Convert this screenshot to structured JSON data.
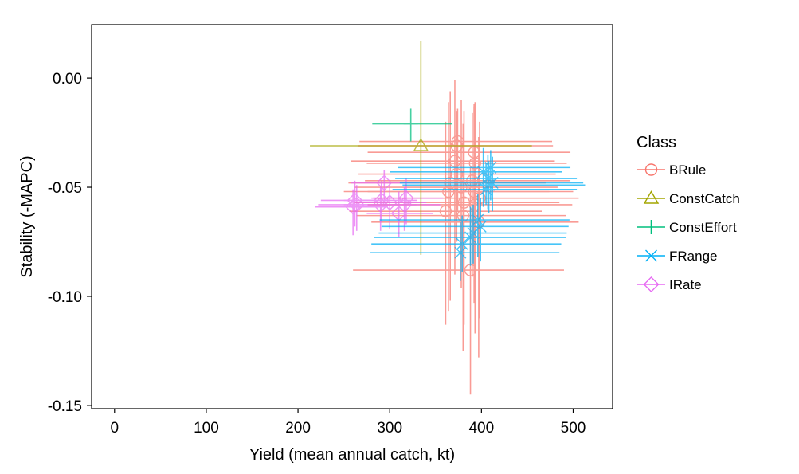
{
  "chart_data": {
    "type": "scatter",
    "title": "",
    "xlabel": "Yield (mean annual catch, kt)",
    "ylabel": "Stability (-MAPC)",
    "xlim": [
      -25,
      543
    ],
    "ylim": [
      -0.1515,
      0.0245
    ],
    "x_ticks": [
      0,
      100,
      200,
      300,
      400,
      500
    ],
    "y_ticks": [
      0.0,
      -0.05,
      -0.1,
      -0.15
    ],
    "x_tick_labels": [
      "0",
      "100",
      "200",
      "300",
      "400",
      "500"
    ],
    "y_tick_labels": [
      "0.00",
      "-0.05",
      "-0.10",
      "-0.15"
    ],
    "grid": false,
    "legend": {
      "title": "Class",
      "placement": "right"
    },
    "series": [
      {
        "name": "BRule",
        "color": "#F8766D",
        "marker": "circle",
        "points": [
          {
            "x": 374,
            "y": -0.029,
            "xmin": 267,
            "xmax": 477,
            "ymin": -0.061,
            "ymax": -0.014
          },
          {
            "x": 373,
            "y": -0.031,
            "xmin": 265,
            "xmax": 478,
            "ymin": -0.063,
            "ymax": -0.015
          },
          {
            "x": 392,
            "y": -0.034,
            "xmin": 276,
            "xmax": 497,
            "ymin": -0.077,
            "ymax": -0.012
          },
          {
            "x": 371,
            "y": -0.038,
            "xmin": 258,
            "xmax": 480,
            "ymin": -0.09,
            "ymax": -0.001
          },
          {
            "x": 393,
            "y": -0.039,
            "xmin": 275,
            "xmax": 493,
            "ymin": -0.083,
            "ymax": -0.011
          },
          {
            "x": 373,
            "y": -0.044,
            "xmin": 266,
            "xmax": 481,
            "ymin": -0.075,
            "ymax": -0.018
          },
          {
            "x": 390,
            "y": -0.047,
            "xmin": 273,
            "xmax": 497,
            "ymin": -0.091,
            "ymax": -0.016
          },
          {
            "x": 366,
            "y": -0.048,
            "xmin": 255,
            "xmax": 470,
            "ymin": -0.102,
            "ymax": -0.006
          },
          {
            "x": 378,
            "y": -0.05,
            "xmin": 262,
            "xmax": 483,
            "ymin": -0.096,
            "ymax": -0.01
          },
          {
            "x": 392,
            "y": -0.052,
            "xmin": 276,
            "xmax": 500,
            "ymin": -0.103,
            "ymax": -0.013
          },
          {
            "x": 364,
            "y": -0.052,
            "xmin": 250,
            "xmax": 474,
            "ymin": -0.107,
            "ymax": -0.011
          },
          {
            "x": 398,
            "y": -0.055,
            "xmin": 282,
            "xmax": 506,
            "ymin": -0.11,
            "ymax": -0.02
          },
          {
            "x": 381,
            "y": -0.057,
            "xmin": 262,
            "xmax": 485,
            "ymin": -0.113,
            "ymax": -0.015
          },
          {
            "x": 393,
            "y": -0.058,
            "xmin": 276,
            "xmax": 499,
            "ymin": -0.117,
            "ymax": -0.018
          },
          {
            "x": 361,
            "y": -0.061,
            "xmin": 256,
            "xmax": 466,
            "ymin": -0.113,
            "ymax": -0.02
          },
          {
            "x": 380,
            "y": -0.063,
            "xmin": 264,
            "xmax": 492,
            "ymin": -0.125,
            "ymax": -0.021
          },
          {
            "x": 397,
            "y": -0.066,
            "xmin": 280,
            "xmax": 506,
            "ymin": -0.128,
            "ymax": -0.027
          },
          {
            "x": 388,
            "y": -0.088,
            "xmin": 260,
            "xmax": 490,
            "ymin": -0.145,
            "ymax": -0.041
          }
        ]
      },
      {
        "name": "ConstCatch",
        "color": "#A3A500",
        "marker": "triangle",
        "points": [
          {
            "x": 334,
            "y": -0.031,
            "xmin": 213,
            "xmax": 455,
            "ymin": -0.081,
            "ymax": 0.017
          }
        ]
      },
      {
        "name": "ConstEffort",
        "color": "#00BF7D",
        "marker": "plus",
        "points": [
          {
            "x": 323,
            "y": -0.021,
            "xmin": 281,
            "xmax": 368,
            "ymin": -0.029,
            "ymax": -0.014
          }
        ]
      },
      {
        "name": "FRange",
        "color": "#00B0F6",
        "marker": "x",
        "points": [
          {
            "x": 410,
            "y": -0.041,
            "xmin": 309,
            "xmax": 497,
            "ymin": -0.056,
            "ymax": -0.033
          },
          {
            "x": 402,
            "y": -0.043,
            "xmin": 300,
            "xmax": 488,
            "ymin": -0.059,
            "ymax": -0.032
          },
          {
            "x": 407,
            "y": -0.046,
            "xmin": 306,
            "xmax": 504,
            "ymin": -0.06,
            "ymax": -0.035
          },
          {
            "x": 412,
            "y": -0.048,
            "xmin": 311,
            "xmax": 511,
            "ymin": -0.061,
            "ymax": -0.036
          },
          {
            "x": 408,
            "y": -0.049,
            "xmin": 314,
            "xmax": 513,
            "ymin": -0.062,
            "ymax": -0.038
          },
          {
            "x": 405,
            "y": -0.051,
            "xmin": 303,
            "xmax": 504,
            "ymin": -0.058,
            "ymax": -0.039
          },
          {
            "x": 396,
            "y": -0.065,
            "xmin": 289,
            "xmax": 496,
            "ymin": -0.082,
            "ymax": -0.053
          },
          {
            "x": 399,
            "y": -0.068,
            "xmin": 291,
            "xmax": 495,
            "ymin": -0.084,
            "ymax": -0.055
          },
          {
            "x": 391,
            "y": -0.071,
            "xmin": 288,
            "xmax": 493,
            "ymin": -0.085,
            "ymax": -0.058
          },
          {
            "x": 388,
            "y": -0.073,
            "xmin": 283,
            "xmax": 492,
            "ymin": -0.086,
            "ymax": -0.059
          },
          {
            "x": 379,
            "y": -0.076,
            "xmin": 280,
            "xmax": 487,
            "ymin": -0.089,
            "ymax": -0.063
          },
          {
            "x": 377,
            "y": -0.08,
            "xmin": 279,
            "xmax": 485,
            "ymin": -0.093,
            "ymax": -0.066
          }
        ]
      },
      {
        "name": "IRate",
        "color": "#E76BF3",
        "marker": "diamond",
        "points": [
          {
            "x": 294,
            "y": -0.048,
            "xmin": 258,
            "xmax": 332,
            "ymin": -0.057,
            "ymax": -0.042
          },
          {
            "x": 318,
            "y": -0.055,
            "xmin": 280,
            "xmax": 358,
            "ymin": -0.067,
            "ymax": -0.046
          },
          {
            "x": 262,
            "y": -0.056,
            "xmin": 225,
            "xmax": 300,
            "ymin": -0.068,
            "ymax": -0.047
          },
          {
            "x": 291,
            "y": -0.056,
            "xmin": 250,
            "xmax": 330,
            "ymin": -0.066,
            "ymax": -0.047
          },
          {
            "x": 300,
            "y": -0.057,
            "xmin": 261,
            "xmax": 340,
            "ymin": -0.069,
            "ymax": -0.048
          },
          {
            "x": 264,
            "y": -0.058,
            "xmin": 222,
            "xmax": 300,
            "ymin": -0.07,
            "ymax": -0.049
          },
          {
            "x": 290,
            "y": -0.058,
            "xmin": 250,
            "xmax": 329,
            "ymin": -0.07,
            "ymax": -0.05
          },
          {
            "x": 316,
            "y": -0.058,
            "xmin": 276,
            "xmax": 355,
            "ymin": -0.07,
            "ymax": -0.05
          },
          {
            "x": 260,
            "y": -0.059,
            "xmin": 219,
            "xmax": 298,
            "ymin": -0.072,
            "ymax": -0.051
          },
          {
            "x": 310,
            "y": -0.062,
            "xmin": 275,
            "xmax": 347,
            "ymin": -0.073,
            "ymax": -0.052
          }
        ]
      }
    ]
  }
}
